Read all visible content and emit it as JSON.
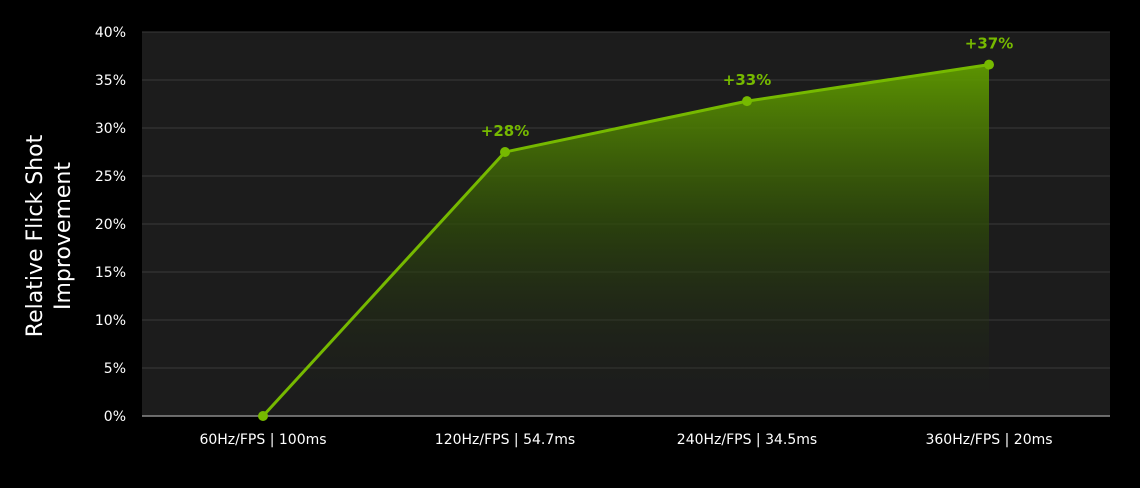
{
  "chart_data": {
    "type": "area",
    "title": "",
    "xlabel": "",
    "ylabel": "Relative Flick Shot\nImprovement",
    "categories": [
      "60Hz/FPS | 100ms",
      "120Hz/FPS | 54.7ms",
      "240Hz/FPS | 34.5ms",
      "360Hz/FPS | 20ms"
    ],
    "series": [
      {
        "values": [
          0,
          27.5,
          32.8,
          36.6
        ],
        "data_labels": [
          "",
          "+28%",
          "+33%",
          "+37%"
        ]
      }
    ],
    "ylim": [
      0,
      40
    ],
    "yticks": [
      0,
      5,
      10,
      15,
      20,
      25,
      30,
      35,
      40
    ],
    "ytick_labels": [
      "0%",
      "5%",
      "10%",
      "15%",
      "20%",
      "25%",
      "30%",
      "35%",
      "40%"
    ],
    "grid": true,
    "legend": "none",
    "colors": {
      "page_background": "#000000",
      "plot_background": "#1c1c1c",
      "grid": "#3a3a3a",
      "line": "#76b900",
      "label": "#76b900",
      "text": "#ffffff"
    }
  }
}
